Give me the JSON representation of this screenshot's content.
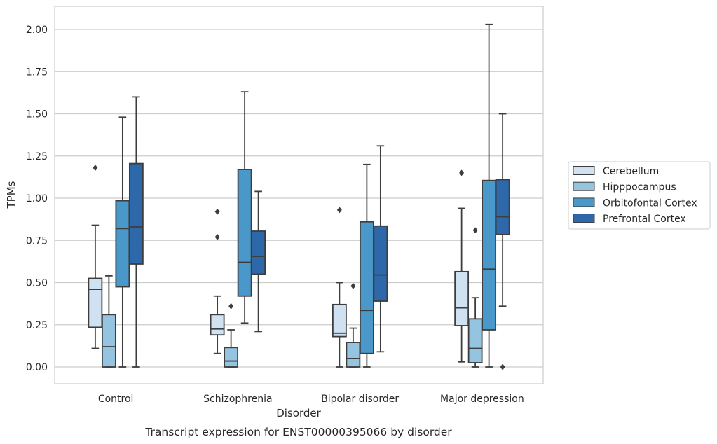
{
  "chart_data": {
    "type": "box",
    "title": "",
    "caption": "Transcript expression for ENST00000395066 by disorder",
    "xlabel": "Disorder",
    "ylabel": "TPMs",
    "ylim": [
      -0.1,
      2.13
    ],
    "yticks": [
      "0.00",
      "0.25",
      "0.50",
      "0.75",
      "1.00",
      "1.25",
      "1.50",
      "1.75",
      "2.00"
    ],
    "grid": "horizontal",
    "legend_position": "right",
    "categories": [
      "Control",
      "Schizophrenia",
      "Bipolar disorder",
      "Major depression"
    ],
    "series": [
      {
        "name": "Cerebellum",
        "color": "#d0e1f2",
        "boxes": [
          {
            "whisker_low": 0.11,
            "q1": 0.235,
            "median": 0.46,
            "q3": 0.525,
            "whisker_high": 0.84,
            "outliers": [
              1.18
            ]
          },
          {
            "whisker_low": 0.08,
            "q1": 0.19,
            "median": 0.225,
            "q3": 0.31,
            "whisker_high": 0.42,
            "outliers": [
              0.77,
              0.92
            ]
          },
          {
            "whisker_low": 0.0,
            "q1": 0.18,
            "median": 0.2,
            "q3": 0.37,
            "whisker_high": 0.5,
            "outliers": [
              0.93
            ]
          },
          {
            "whisker_low": 0.03,
            "q1": 0.245,
            "median": 0.35,
            "q3": 0.565,
            "whisker_high": 0.94,
            "outliers": [
              1.15
            ]
          }
        ]
      },
      {
        "name": "Hipppocampus",
        "color": "#94c4df",
        "boxes": [
          {
            "whisker_low": 0.0,
            "q1": 0.0,
            "median": 0.12,
            "q3": 0.31,
            "whisker_high": 0.54,
            "outliers": []
          },
          {
            "whisker_low": 0.0,
            "q1": 0.0,
            "median": 0.035,
            "q3": 0.115,
            "whisker_high": 0.22,
            "outliers": [
              0.36
            ]
          },
          {
            "whisker_low": 0.0,
            "q1": 0.0,
            "median": 0.05,
            "q3": 0.145,
            "whisker_high": 0.23,
            "outliers": [
              0.48
            ]
          },
          {
            "whisker_low": 0.0,
            "q1": 0.025,
            "median": 0.11,
            "q3": 0.285,
            "whisker_high": 0.41,
            "outliers": [
              0.81
            ]
          }
        ]
      },
      {
        "name": "Orbitofontal Cortex",
        "color": "#4a98c9",
        "boxes": [
          {
            "whisker_low": 0.0,
            "q1": 0.475,
            "median": 0.82,
            "q3": 0.985,
            "whisker_high": 1.48,
            "outliers": []
          },
          {
            "whisker_low": 0.26,
            "q1": 0.42,
            "median": 0.62,
            "q3": 1.17,
            "whisker_high": 1.63,
            "outliers": []
          },
          {
            "whisker_low": 0.0,
            "q1": 0.08,
            "median": 0.335,
            "q3": 0.86,
            "whisker_high": 1.2,
            "outliers": []
          },
          {
            "whisker_low": 0.0,
            "q1": 0.22,
            "median": 0.58,
            "q3": 1.105,
            "whisker_high": 2.03,
            "outliers": []
          }
        ]
      },
      {
        "name": "Prefrontal Cortex",
        "color": "#2d69aa",
        "boxes": [
          {
            "whisker_low": 0.0,
            "q1": 0.61,
            "median": 0.83,
            "q3": 1.205,
            "whisker_high": 1.6,
            "outliers": []
          },
          {
            "whisker_low": 0.21,
            "q1": 0.55,
            "median": 0.655,
            "q3": 0.805,
            "whisker_high": 1.04,
            "outliers": []
          },
          {
            "whisker_low": 0.09,
            "q1": 0.39,
            "median": 0.545,
            "q3": 0.835,
            "whisker_high": 1.31,
            "outliers": []
          },
          {
            "whisker_low": 0.36,
            "q1": 0.785,
            "median": 0.89,
            "q3": 1.11,
            "whisker_high": 1.5,
            "outliers": [
              0.0
            ]
          }
        ]
      }
    ]
  }
}
